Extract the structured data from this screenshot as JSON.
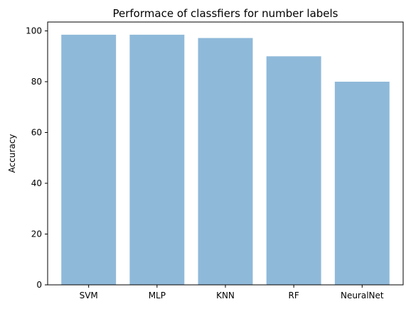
{
  "chart_data": {
    "type": "bar",
    "title": "Performace of classfiers for number labels",
    "xlabel": "",
    "ylabel": "Accuracy",
    "categories": [
      "SVM",
      "MLP",
      "KNN",
      "RF",
      "NeuralNet"
    ],
    "values": [
      98.5,
      98.5,
      97.2,
      90.0,
      80.0
    ],
    "ylim": [
      0,
      103.5
    ],
    "yticks": [
      0,
      20,
      40,
      60,
      80,
      100
    ],
    "bar_color": "#8fb9d9",
    "grid": false,
    "legend": "none"
  }
}
